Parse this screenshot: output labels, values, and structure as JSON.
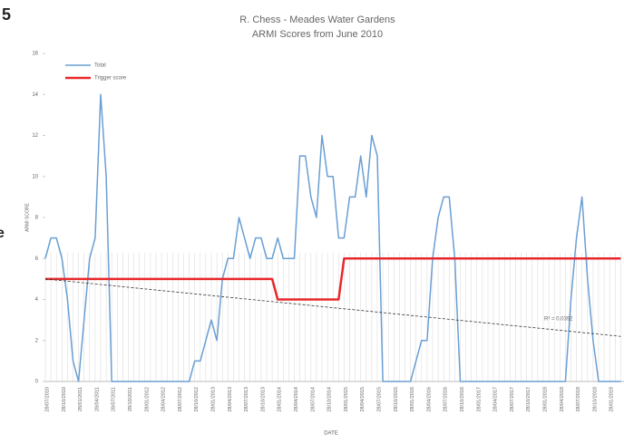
{
  "fragments": [
    "5",
    "e"
  ],
  "chart_data": {
    "type": "line",
    "title": "R. Chess - Meades Water Gardens",
    "subtitle": "ARMI Scores from June 2010",
    "y_label": "ARMI SCORE",
    "x_label": "DATE",
    "categories": [
      "28/07/2010",
      null,
      null,
      "28/10/2010",
      null,
      null,
      "28/01/2011",
      null,
      null,
      "28/04/2011",
      null,
      null,
      "28/07/2011",
      null,
      null,
      "28/10/2011",
      null,
      null,
      "28/01/2012",
      null,
      null,
      "28/04/2012",
      null,
      null,
      "28/07/2012",
      null,
      null,
      "28/10/2012",
      null,
      null,
      "28/01/2013",
      null,
      null,
      "28/04/2013",
      null,
      null,
      "28/07/2013",
      null,
      null,
      "28/10/2013",
      null,
      null,
      "28/01/2014",
      null,
      null,
      "28/04/2014",
      null,
      null,
      "28/07/2014",
      null,
      null,
      "28/10/2014",
      null,
      null,
      "28/01/2015",
      null,
      null,
      "28/04/2015",
      null,
      null,
      "28/07/2015",
      null,
      null,
      "28/10/2015",
      null,
      null,
      "28/01/2016",
      null,
      null,
      "28/04/2016",
      null,
      null,
      "28/07/2016",
      null,
      null,
      "28/10/2016",
      null,
      null,
      "28/01/2017",
      null,
      null,
      "28/04/2017",
      null,
      null,
      "28/07/2017",
      null,
      null,
      "28/10/2017",
      null,
      null,
      "28/01/2018",
      null,
      null,
      "28/04/2018",
      null,
      null,
      "28/07/2018",
      null,
      null,
      "28/10/2018",
      null,
      null,
      "28/01/2019",
      null,
      null
    ],
    "series": [
      {
        "name": "Total",
        "color": "#6a9fd4",
        "values": [
          6,
          7,
          7,
          6,
          4,
          1,
          0,
          3,
          6,
          7,
          14,
          10,
          0,
          0,
          0,
          0,
          0,
          0,
          0,
          0,
          0,
          0,
          0,
          0,
          0,
          0,
          0,
          1,
          1,
          2,
          3,
          2,
          5,
          6,
          6,
          8,
          7,
          6,
          7,
          7,
          6,
          6,
          7,
          6,
          6,
          6,
          11,
          11,
          9,
          8,
          12,
          10,
          10,
          7,
          7,
          9,
          9,
          11,
          9,
          12,
          11,
          0,
          0,
          0,
          0,
          0,
          0,
          1,
          2,
          2,
          6,
          8,
          9,
          9,
          6,
          0,
          0,
          0,
          0,
          0,
          0,
          0,
          0,
          0,
          0,
          0,
          0,
          0,
          0,
          0,
          0,
          0,
          0,
          0,
          0,
          4,
          7,
          9,
          5,
          2,
          0,
          0,
          0,
          0,
          0
        ]
      },
      {
        "name": "Trigger score",
        "color": "#e8282b",
        "values": [
          5,
          5,
          5,
          5,
          5,
          5,
          5,
          5,
          5,
          5,
          5,
          5,
          5,
          5,
          5,
          5,
          5,
          5,
          5,
          5,
          5,
          5,
          5,
          5,
          5,
          5,
          5,
          5,
          5,
          5,
          5,
          5,
          5,
          5,
          5,
          5,
          5,
          5,
          5,
          5,
          5,
          5,
          4,
          4,
          4,
          4,
          4,
          4,
          4,
          4,
          4,
          4,
          4,
          4,
          6,
          6,
          6,
          6,
          6,
          6,
          6,
          6,
          6,
          6,
          6,
          6,
          6,
          6,
          6,
          6,
          6,
          6,
          6,
          6,
          6,
          6,
          6,
          6,
          6,
          6,
          6,
          6,
          6,
          6,
          6,
          6,
          6,
          6,
          6,
          6,
          6,
          6,
          6,
          6,
          6,
          6,
          6,
          6,
          6,
          6,
          6,
          6,
          6,
          6,
          6
        ]
      }
    ],
    "trendline": {
      "values": [
        5,
        2.2
      ],
      "label": "R² = 0.0392",
      "color": "#333333"
    },
    "ylim": [
      0,
      16
    ],
    "yticks": [
      0,
      2,
      4,
      6,
      8,
      10,
      12,
      14,
      16
    ],
    "legend": "top-left",
    "grid": false
  }
}
